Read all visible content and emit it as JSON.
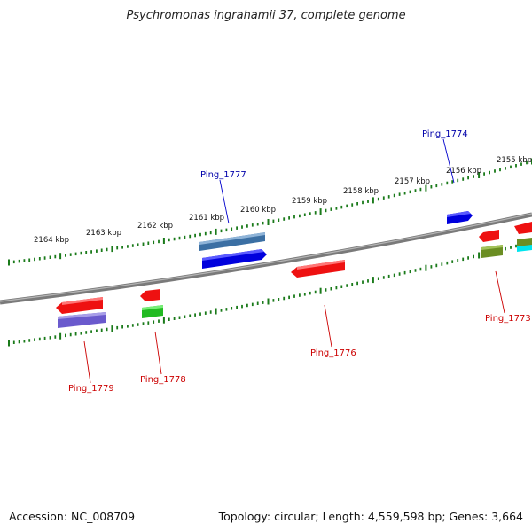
{
  "title": "Psychromonas ingrahamii 37, complete genome",
  "footer": {
    "accession": "Accession: NC_008709",
    "summary": "Topology: circular; Length: 4,559,598 bp; Genes: 3,664"
  },
  "ticks": [
    "2164 kbp",
    "2163 kbp",
    "2162 kbp",
    "2161 kbp",
    "2160 kbp",
    "2159 kbp",
    "2158 kbp",
    "2157 kbp",
    "2156 kbp",
    "2155 kbp"
  ],
  "genes_forward": [
    {
      "name": "Ping_1777",
      "color": "#4a7fb5"
    },
    {
      "name": "Ping_1774",
      "color": "#0000ee"
    }
  ],
  "genes_reverse": [
    {
      "name": "Ping_1779",
      "color": "#ee1111"
    },
    {
      "name": "Ping_1778",
      "color": "#ee1111"
    },
    {
      "name": "Ping_1776",
      "color": "#ee1111"
    },
    {
      "name": "Ping_1773",
      "color": "#ee1111"
    }
  ],
  "colors": {
    "backbone": "#808080",
    "tick": "#1a7a1a",
    "forward_label": "#0000aa",
    "reverse_label": "#cc0000"
  }
}
